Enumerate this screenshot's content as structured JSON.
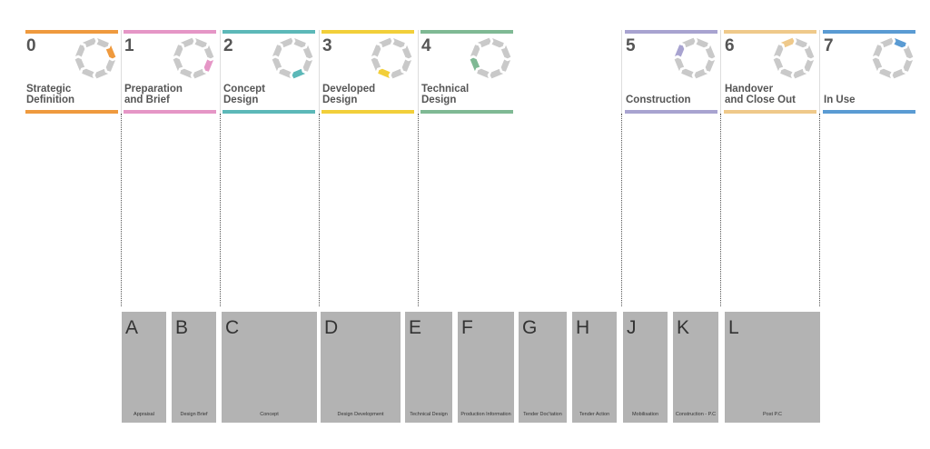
{
  "stages": [
    {
      "number": "0",
      "name": "Strategic\nDefinition",
      "color": "#ef9a3e",
      "segment": 1
    },
    {
      "number": "1",
      "name": "Preparation\nand Brief",
      "color": "#e596c6",
      "segment": 2
    },
    {
      "number": "2",
      "name": "Concept\nDesign",
      "color": "#5cb8b8",
      "segment": 3
    },
    {
      "number": "3",
      "name": "Developed\nDesign",
      "color": "#f2cf3a",
      "segment": 4
    },
    {
      "number": "4",
      "name": "Technical\nDesign",
      "color": "#7fb994",
      "segment": 5
    },
    {
      "number": "5",
      "name": "Construction",
      "color": "#a8a3d0",
      "segment": 6
    },
    {
      "number": "6",
      "name": "Handover\nand Close Out",
      "color": "#efc98a",
      "segment": 7
    },
    {
      "number": "7",
      "name": "In Use",
      "color": "#5a9bd3",
      "segment": 0
    }
  ],
  "riba_stages": [
    {
      "letter": "A",
      "label": "Appraisal"
    },
    {
      "letter": "B",
      "label": "Design Brief"
    },
    {
      "letter": "C",
      "label": "Concept"
    },
    {
      "letter": "D",
      "label": "Design Development"
    },
    {
      "letter": "E",
      "label": "Technical Design"
    },
    {
      "letter": "F",
      "label": "Production Information"
    },
    {
      "letter": "G",
      "label": "Tender Doc'tation"
    },
    {
      "letter": "H",
      "label": "Tender Action"
    },
    {
      "letter": "J",
      "label": "Mobilisation"
    },
    {
      "letter": "K",
      "label": "Construction - P.C"
    },
    {
      "letter": "L",
      "label": "Post P.C"
    }
  ]
}
